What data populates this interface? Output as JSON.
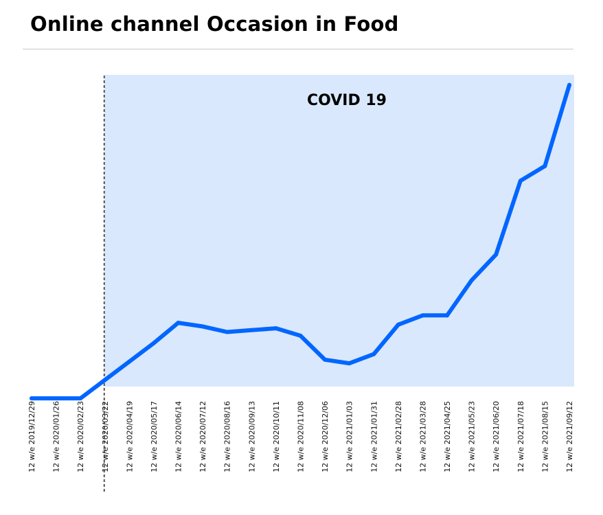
{
  "title": "Online channel Occasion in Food",
  "colors": {
    "line": "#0066ff",
    "covid_band": "#dae8fd",
    "marker_line": "#555555"
  },
  "chart_data": {
    "type": "line",
    "title": "Online channel Occasion in Food",
    "xlabel": "",
    "ylabel": "",
    "ylim": [
      0,
      100
    ],
    "grid": false,
    "legend": "none",
    "categories": [
      "12 w/e 2019/12/29",
      "12 w/e 2020/01/26",
      "12 w/e 2020/02/23",
      "12 w/e 2020/03/22",
      "12 w/e 2020/04/19",
      "12 w/e 2020/05/17",
      "12 w/e 2020/06/14",
      "12 w/e 2020/07/12",
      "12 w/e 2020/08/16",
      "12 w/e 2020/09/13",
      "12 w/e 2020/10/11",
      "12 w/e 2020/11/08",
      "12 w/e 2020/12/06",
      "12 w/e 2021/01/03",
      "12 w/e 2021/01/31",
      "12 w/e 2021/02/28",
      "12 w/e 2021/03/28",
      "12 w/e 2021/04/25",
      "12 w/e 2021/05/23",
      "12 w/e 2021/06/20",
      "12 w/e 2021/07/18",
      "12 w/e 2021/08/15",
      "12 w/e 2021/09/12"
    ],
    "values": [
      5,
      5,
      5,
      10,
      15,
      20,
      25.5,
      24.5,
      23,
      23.5,
      24,
      22,
      15.5,
      14.5,
      17,
      25,
      27.5,
      27.5,
      37,
      44,
      64,
      68,
      90
    ],
    "covid_start": "12 w/e 2020/03/22",
    "annotation": "COVID 19"
  }
}
